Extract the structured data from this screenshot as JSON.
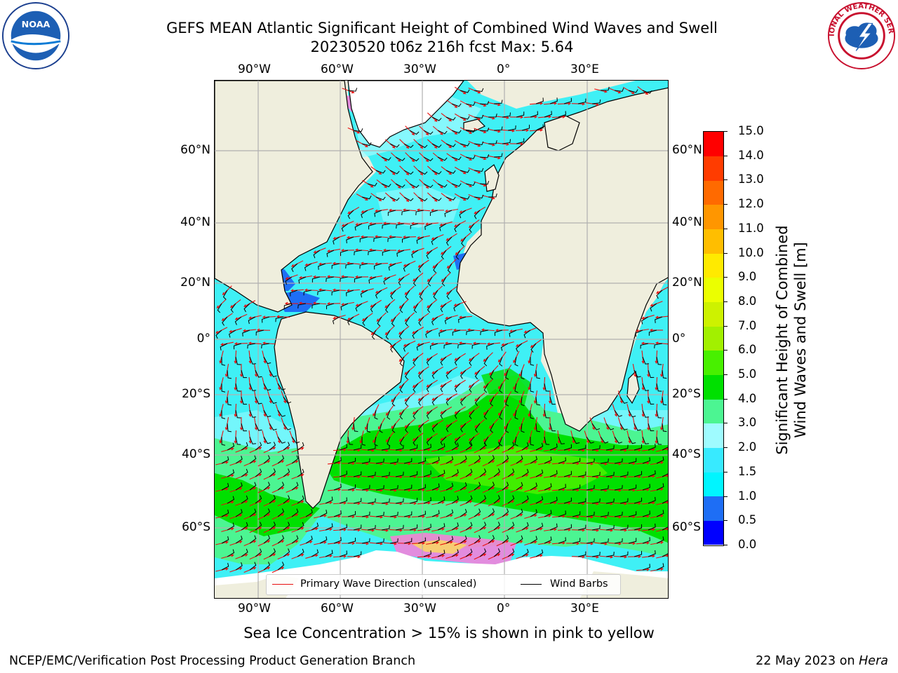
{
  "header": {
    "title_line1": "GEFS MEAN Atlantic Significant Height of Combined Wind Waves and Swell",
    "title_line2": "20230520 t06z 216h fcst   Max: 5.64"
  },
  "logos": {
    "left": "noaa-logo",
    "left_text": "NOAA",
    "right": "nws-logo",
    "right_text": "NATIONAL WEATHER SERVICE"
  },
  "map": {
    "region": "Atlantic",
    "lon_ticks": [
      "90°W",
      "60°W",
      "30°W",
      "0°",
      "30°E"
    ],
    "lat_ticks": [
      "60°N",
      "40°N",
      "20°N",
      "0°",
      "20°S",
      "40°S",
      "60°S"
    ],
    "land_color": "#efeedd",
    "gridline_color": "#b0b0b0",
    "wave_arrow_color": "#e81010",
    "wind_barb_color": "#000000"
  },
  "legend": {
    "items": [
      {
        "label": "Primary Wave Direction (unscaled)",
        "color": "#e81010"
      },
      {
        "label": "Wind Barbs",
        "color": "#000000"
      }
    ]
  },
  "colorbar": {
    "label_line1": "Significant Height of Combined",
    "label_line2": "Wind Waves and Swell [m]",
    "ticks": [
      "0.0",
      "0.5",
      "1.0",
      "1.5",
      "2.0",
      "3.0",
      "4.0",
      "5.0",
      "6.0",
      "7.0",
      "8.0",
      "9.0",
      "10.0",
      "11.0",
      "12.0",
      "13.0",
      "14.0",
      "15.0"
    ],
    "colors": [
      "#0000ff",
      "#1e6ef5",
      "#00f5ff",
      "#38eaff",
      "#9ffbff",
      "#4cf592",
      "#00e000",
      "#48f000",
      "#a2f000",
      "#cdf200",
      "#ebff00",
      "#ffea00",
      "#ffbe00",
      "#ff9600",
      "#ff6a00",
      "#ff3c00",
      "#ff0000"
    ]
  },
  "note": "Sea Ice Concentration > 15% is shown in pink to yellow",
  "footer": {
    "left": "NCEP/EMC/Verification Post Processing Product Generation Branch",
    "date": "22 May 2023 on",
    "host": "Hera"
  }
}
